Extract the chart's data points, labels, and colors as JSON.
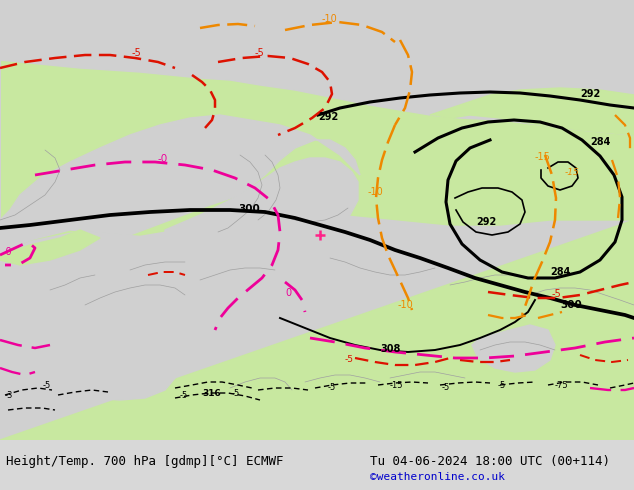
{
  "title_left": "Height/Temp. 700 hPa [gdmp][°C] ECMWF",
  "title_right": "Tu 04-06-2024 18:00 UTC (00+114)",
  "credit": "©weatheronline.co.uk",
  "bg_color": "#d8d8d8",
  "map_bg_color": "#d0d0d0",
  "land_green_color": "#c8e8a0",
  "land_gray_color": "#b8b8b8",
  "bottom_bar_color": "#f0f0f0",
  "contour_black_color": "#000000",
  "contour_red_color": "#dd1100",
  "contour_orange_color": "#ee8800",
  "contour_magenta_color": "#ee0099",
  "title_font_size": 9,
  "credit_font_size": 8,
  "credit_color": "#0000cc",
  "figsize": [
    6.34,
    4.9
  ],
  "dpi": 100
}
